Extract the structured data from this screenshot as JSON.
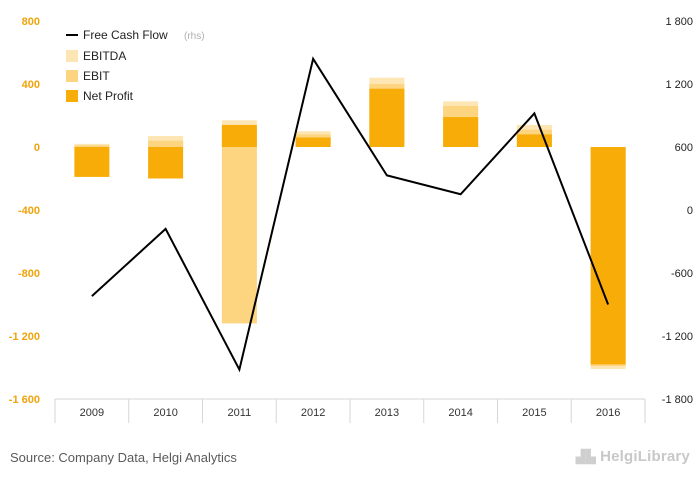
{
  "chart_data": {
    "type": "bar",
    "categories": [
      "2009",
      "2010",
      "2011",
      "2012",
      "2013",
      "2014",
      "2015",
      "2016"
    ],
    "series": [
      {
        "name": "EBITDA",
        "kind": "bar",
        "axis": "left",
        "color": "#fde6b4",
        "values": [
          20,
          70,
          170,
          100,
          440,
          290,
          140,
          -1410
        ]
      },
      {
        "name": "EBIT",
        "kind": "bar",
        "axis": "left",
        "color": "#fdd47f",
        "values": [
          10,
          40,
          -1120,
          80,
          400,
          260,
          110,
          -1390
        ]
      },
      {
        "name": "Net Profit",
        "kind": "bar",
        "axis": "left",
        "color": "#f8ac08",
        "values": [
          -190,
          -200,
          140,
          60,
          370,
          190,
          80,
          -1380
        ]
      },
      {
        "name": "Free Cash Flow",
        "kind": "line",
        "axis": "right",
        "color": "#000000",
        "values": [
          -820,
          -180,
          -1520,
          1440,
          330,
          150,
          920,
          -900
        ]
      }
    ],
    "legend": [
      "Free Cash Flow",
      "(rhs)",
      "EBITDA",
      "EBIT",
      "Net Profit"
    ],
    "legend_position": "top-left",
    "ylim": [
      -1600,
      800
    ],
    "y_ticks": [
      "800",
      "400",
      "0",
      "-400",
      "-800",
      "-1 200",
      "-1 600"
    ],
    "y2lim": [
      -1800,
      1800
    ],
    "y2_ticks": [
      "1 800",
      "1 200",
      "600",
      "0",
      "-600",
      "-1 200",
      "-1 800"
    ],
    "colors": {
      "left_axis_labels": "#f0a30a",
      "right_axis_labels": "#222222"
    }
  },
  "source": "Source: Company Data, Helgi Analytics",
  "logo": "HelgiLibrary"
}
